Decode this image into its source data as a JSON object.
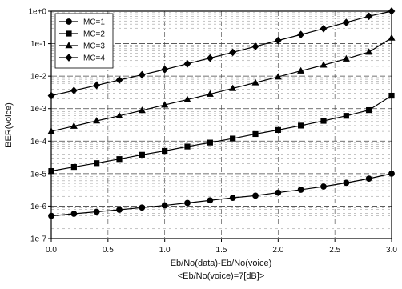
{
  "chart_data": {
    "type": "line",
    "title": "",
    "xlabel": "Eb/No(data)-Eb/No(voice)",
    "xlabel_sub": "<Eb/No(voice)=7[dB]>",
    "ylabel": "BER(voice)",
    "y_scale": "log",
    "xlim": [
      0.0,
      3.0
    ],
    "ylim": [
      1e-07,
      1
    ],
    "x_tick_labels": [
      "0.0",
      "0.5",
      "1.0",
      "1.5",
      "2.0",
      "2.5",
      "3.0"
    ],
    "y_tick_labels": [
      "1e-7",
      "1e-6",
      "1e-5",
      "1e-4",
      "1e-3",
      "1e-2",
      "1e-1",
      "1e+0"
    ],
    "grid": true,
    "legend_position": "top-left",
    "x": [
      0.0,
      0.2,
      0.4,
      0.6,
      0.8,
      1.0,
      1.2,
      1.4,
      1.6,
      1.8,
      2.0,
      2.2,
      2.4,
      2.6,
      2.8,
      3.0
    ],
    "series": [
      {
        "name": "MC=1",
        "marker": "circle",
        "values": [
          5e-07,
          5.8e-07,
          6.7e-07,
          7.7e-07,
          9e-07,
          1.05e-06,
          1.25e-06,
          1.5e-06,
          1.8e-06,
          2.1e-06,
          2.6e-06,
          3.2e-06,
          4e-06,
          5.2e-06,
          7e-06,
          1e-05
        ]
      },
      {
        "name": "MC=2",
        "marker": "square",
        "values": [
          1.2e-05,
          1.6e-05,
          2.1e-05,
          2.8e-05,
          3.8e-05,
          5e-05,
          6.8e-05,
          9e-05,
          0.00012,
          0.000165,
          0.00022,
          0.0003,
          0.00042,
          0.0006,
          0.0009,
          0.0025
        ]
      },
      {
        "name": "MC=3",
        "marker": "triangle",
        "values": [
          0.0002,
          0.00029,
          0.00042,
          0.0006,
          0.00088,
          0.0013,
          0.0019,
          0.0028,
          0.0042,
          0.0063,
          0.0095,
          0.0145,
          0.022,
          0.034,
          0.055,
          0.15
        ]
      },
      {
        "name": "MC=4",
        "marker": "diamond",
        "values": [
          0.0025,
          0.0036,
          0.0052,
          0.0076,
          0.011,
          0.016,
          0.024,
          0.036,
          0.054,
          0.082,
          0.125,
          0.19,
          0.29,
          0.45,
          0.7,
          1.0
        ]
      }
    ]
  }
}
